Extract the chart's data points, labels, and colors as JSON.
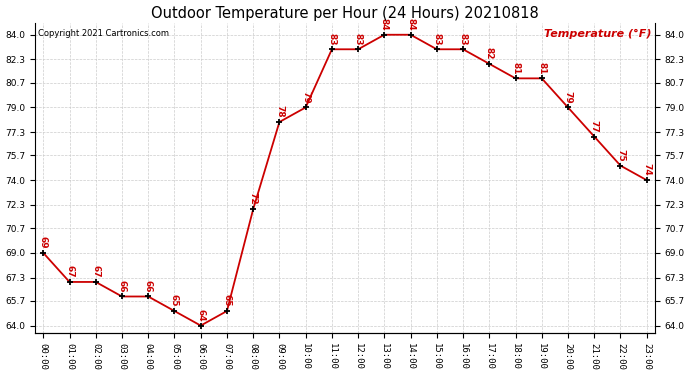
{
  "title": "Outdoor Temperature per Hour (24 Hours) 20210818",
  "copyright": "Copyright 2021 Cartronics.com",
  "ylabel": "Temperature (°F)",
  "hours": [
    "00:00",
    "01:00",
    "02:00",
    "03:00",
    "04:00",
    "05:00",
    "06:00",
    "07:00",
    "08:00",
    "09:00",
    "10:00",
    "11:00",
    "12:00",
    "13:00",
    "14:00",
    "15:00",
    "16:00",
    "17:00",
    "18:00",
    "19:00",
    "20:00",
    "21:00",
    "22:00",
    "23:00"
  ],
  "temps": [
    69,
    67,
    67,
    66,
    66,
    65,
    64,
    65,
    72,
    78,
    79,
    83,
    83,
    84,
    84,
    83,
    83,
    82,
    81,
    81,
    79,
    77,
    75,
    74
  ],
  "yticks": [
    64.0,
    65.7,
    67.3,
    69.0,
    70.7,
    72.3,
    74.0,
    75.7,
    77.3,
    79.0,
    80.7,
    82.3,
    84.0
  ],
  "ylim_min": 63.5,
  "ylim_max": 84.8,
  "xlim_min": -0.3,
  "xlim_max": 23.3,
  "line_color": "#cc0000",
  "marker_color": "#000000",
  "text_color": "#cc0000",
  "title_color": "#000000",
  "copyright_color": "#000000",
  "bg_color": "#ffffff",
  "grid_color": "#cccccc",
  "label_fontsize": 6.5,
  "title_fontsize": 10.5,
  "annot_fontsize": 6.5,
  "ylabel_fontsize": 8
}
